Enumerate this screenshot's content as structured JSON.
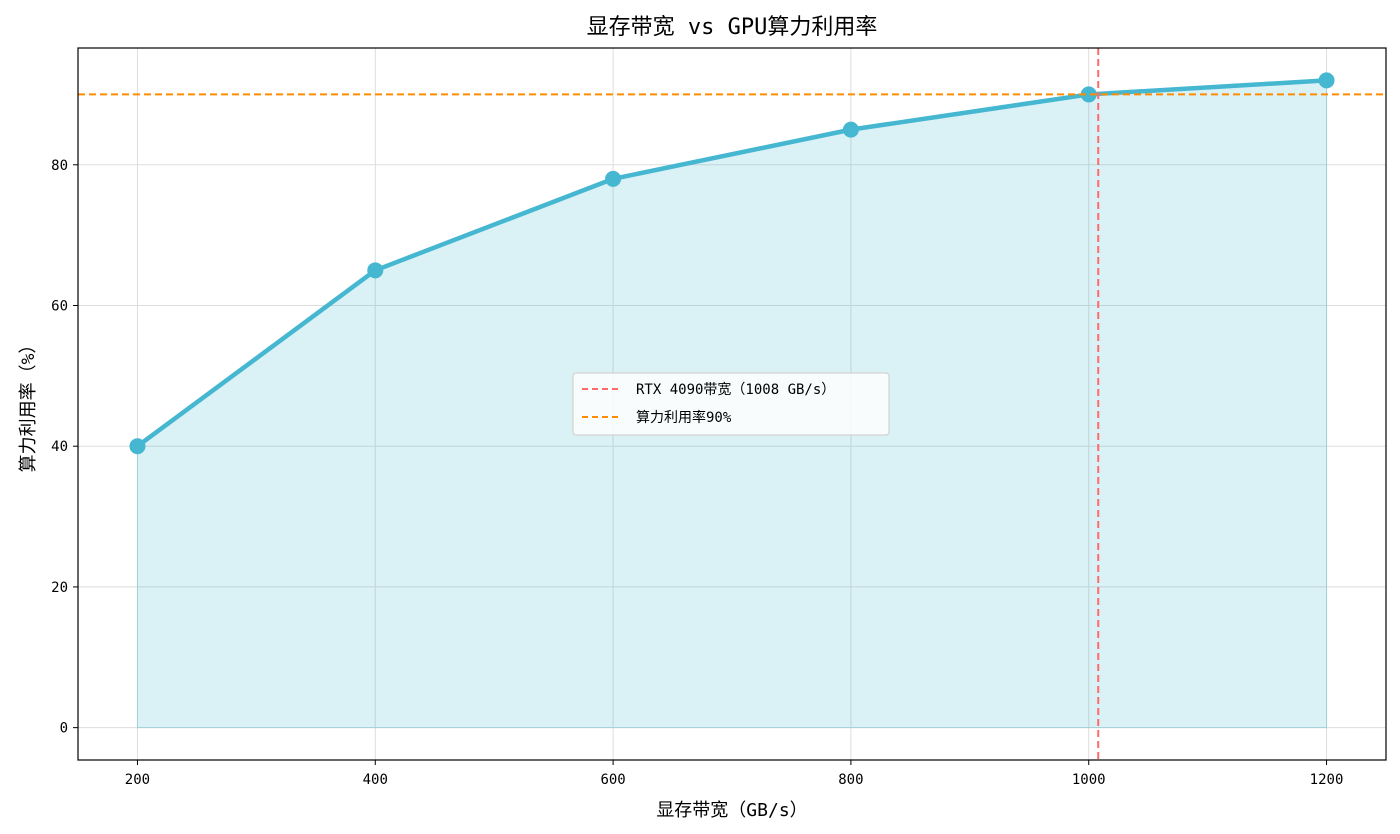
{
  "chart_data": {
    "type": "line",
    "title": "显存带宽 vs GPU算力利用率",
    "xlabel": "显存带宽（GB/s）",
    "ylabel": "算力利用率（%）",
    "x": [
      200,
      400,
      600,
      800,
      1000,
      1200
    ],
    "series": [
      {
        "values": [
          40,
          65,
          78,
          85,
          90,
          92
        ],
        "color": "#45b7d1",
        "fill": true,
        "markers": true
      }
    ],
    "xlim": [
      150,
      1250
    ],
    "ylim": [
      -4.6,
      96.6
    ],
    "xticks": [
      200,
      400,
      600,
      800,
      1000,
      1200
    ],
    "yticks": [
      0,
      20,
      40,
      60,
      80
    ],
    "grid": true,
    "reference_lines": [
      {
        "orientation": "vertical",
        "value": 1008,
        "label": "RTX 4090带宽（1008 GB/s）",
        "color": "#ff6b6b",
        "style": "dashed"
      },
      {
        "orientation": "horizontal",
        "value": 90,
        "label": "算力利用率90%",
        "color": "#ff8c00",
        "style": "dashed"
      }
    ],
    "legend": "center"
  }
}
